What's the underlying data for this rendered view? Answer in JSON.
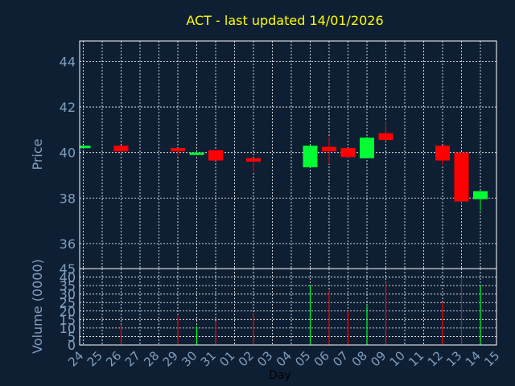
{
  "chart_data": [
    {
      "type": "candlestick",
      "title": "ACT - last updated 14/01/2026",
      "ylabel": "Price",
      "ylim": [
        34.9,
        44.9
      ],
      "yticks": [
        36,
        38,
        40,
        42,
        44
      ],
      "grid": true,
      "x": [
        "24",
        "25",
        "26",
        "27",
        "28",
        "29",
        "30",
        "31",
        "01",
        "02",
        "03",
        "04",
        "05",
        "06",
        "07",
        "08",
        "09",
        "10",
        "11",
        "12",
        "13",
        "14",
        "15"
      ],
      "candles": [
        {
          "day": "24",
          "open": 40.25,
          "high": 40.3,
          "low": 40.2,
          "close": 40.3
        },
        {
          "day": "26",
          "open": 40.3,
          "high": 40.3,
          "low": 40.0,
          "close": 40.05
        },
        {
          "day": "29",
          "open": 40.2,
          "high": 40.2,
          "low": 39.8,
          "close": 40.05
        },
        {
          "day": "30",
          "open": 39.9,
          "high": 40.05,
          "low": 39.9,
          "close": 40.0
        },
        {
          "day": "31",
          "open": 40.1,
          "high": 40.1,
          "low": 39.65,
          "close": 39.65
        },
        {
          "day": "02",
          "open": 39.75,
          "high": 39.75,
          "low": 39.15,
          "close": 39.6
        },
        {
          "day": "05",
          "open": 39.35,
          "high": 40.3,
          "low": 39.35,
          "close": 40.3
        },
        {
          "day": "06",
          "open": 40.25,
          "high": 40.7,
          "low": 39.5,
          "close": 40.05
        },
        {
          "day": "07",
          "open": 40.2,
          "high": 40.2,
          "low": 39.75,
          "close": 39.8
        },
        {
          "day": "08",
          "open": 39.75,
          "high": 40.7,
          "low": 39.75,
          "close": 40.65
        },
        {
          "day": "09",
          "open": 40.85,
          "high": 41.4,
          "low": 40.5,
          "close": 40.55
        },
        {
          "day": "12",
          "open": 40.3,
          "high": 40.3,
          "low": 39.45,
          "close": 39.65
        },
        {
          "day": "13",
          "open": 40.0,
          "high": 40.0,
          "low": 37.8,
          "close": 37.85
        },
        {
          "day": "14",
          "open": 37.95,
          "high": 38.3,
          "low": 37.45,
          "close": 38.3
        }
      ]
    },
    {
      "type": "bar",
      "ylabel": "Volume (0000)",
      "xlabel": "Day",
      "ylim": [
        0,
        45
      ],
      "yticks": [
        0,
        5,
        10,
        15,
        20,
        25,
        30,
        35,
        40,
        45
      ],
      "categories": [
        "24",
        "25",
        "26",
        "27",
        "28",
        "29",
        "30",
        "31",
        "01",
        "02",
        "03",
        "04",
        "05",
        "06",
        "07",
        "08",
        "09",
        "10",
        "11",
        "12",
        "13",
        "14",
        "15"
      ],
      "bars": [
        {
          "day": "26",
          "value": 12,
          "color": "red"
        },
        {
          "day": "29",
          "value": 17,
          "color": "red"
        },
        {
          "day": "30",
          "value": 11,
          "color": "green"
        },
        {
          "day": "31",
          "value": 14,
          "color": "red"
        },
        {
          "day": "02",
          "value": 19,
          "color": "red"
        },
        {
          "day": "05",
          "value": 35,
          "color": "green"
        },
        {
          "day": "06",
          "value": 32,
          "color": "red"
        },
        {
          "day": "07",
          "value": 20,
          "color": "red"
        },
        {
          "day": "08",
          "value": 23,
          "color": "green"
        },
        {
          "day": "09",
          "value": 37,
          "color": "red"
        },
        {
          "day": "12",
          "value": 25,
          "color": "red"
        },
        {
          "day": "13",
          "value": 40,
          "color": "red"
        },
        {
          "day": "14",
          "value": 35,
          "color": "green"
        }
      ]
    }
  ],
  "colors": {
    "background": "#0f1f33",
    "title": "#ffff00",
    "axis_text": "#7f9fbf",
    "frame": "#ffffff",
    "grid": "#ffffff",
    "up": "#00ff33",
    "down": "#ff0000",
    "xlabel_text": "#000000"
  }
}
